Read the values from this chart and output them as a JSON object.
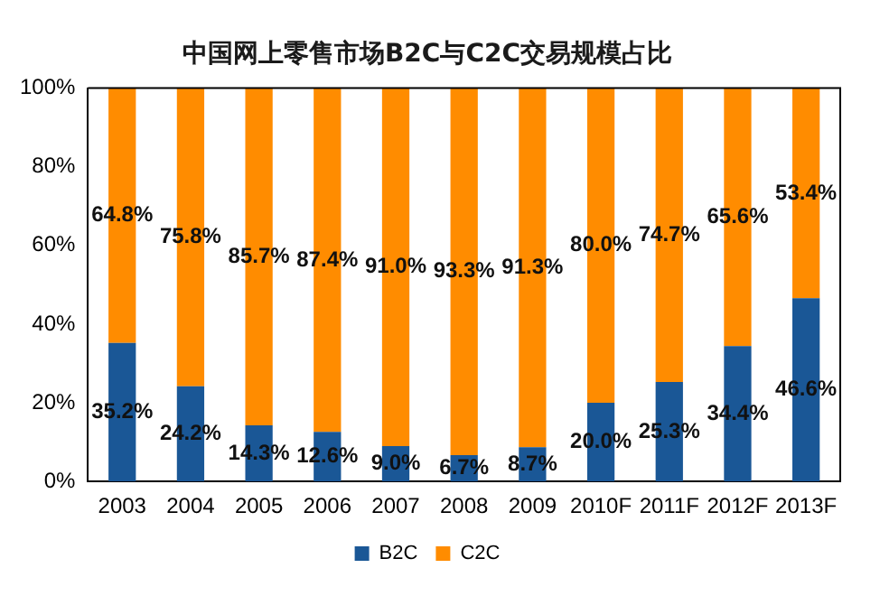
{
  "chart_data": {
    "type": "bar",
    "title": "中国网上零售市场B2C与C2C交易规模占比",
    "stacked": true,
    "legend": "bottom",
    "grid": false,
    "categories": [
      "2003",
      "2004",
      "2005",
      "2006",
      "2007",
      "2008",
      "2009",
      "2010F",
      "2011F",
      "2012F",
      "2013F"
    ],
    "ylim": [
      0,
      100
    ],
    "yticks": [
      {
        "value": 0,
        "label": "0%"
      },
      {
        "value": 20,
        "label": "20%"
      },
      {
        "value": 40,
        "label": "40%"
      },
      {
        "value": 60,
        "label": "60%"
      },
      {
        "value": 80,
        "label": "80%"
      },
      {
        "value": 100,
        "label": "100%"
      }
    ],
    "series": [
      {
        "name": "B2C",
        "color": "#1a5796",
        "values": [
          35.2,
          24.2,
          14.3,
          12.6,
          9.0,
          6.7,
          8.7,
          20.0,
          25.3,
          34.4,
          46.6
        ],
        "value_labels": [
          "35.2%",
          "24.2%",
          "14.3%",
          "12.6%",
          "9.0%",
          "6.7%",
          "8.7%",
          "20.0%",
          "25.3%",
          "34.4%",
          "46.6%"
        ]
      },
      {
        "name": "C2C",
        "color": "#ff8c00",
        "values": [
          64.8,
          75.8,
          85.7,
          87.4,
          91.0,
          93.3,
          91.3,
          80.0,
          74.7,
          65.6,
          53.4
        ],
        "value_labels": [
          "64.8%",
          "75.8%",
          "85.7%",
          "87.4%",
          "91.0%",
          "93.3%",
          "91.3%",
          "80.0%",
          "74.7%",
          "65.6%",
          "53.4%"
        ]
      }
    ]
  }
}
